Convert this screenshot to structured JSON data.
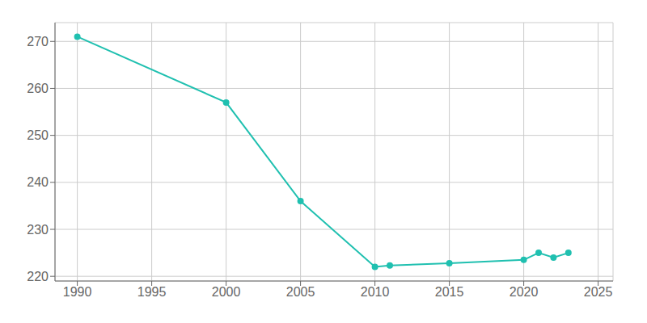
{
  "chart_data": {
    "type": "line",
    "x": [
      1990,
      2000,
      2005,
      2010,
      2011,
      2015,
      2020,
      2021,
      2022,
      2023
    ],
    "values": [
      271,
      257,
      236,
      222,
      222.3,
      222.8,
      223.5,
      225,
      224,
      225
    ],
    "color": "#20c0b0",
    "marker": "circle",
    "xlim": [
      1988.5,
      2026
    ],
    "ylim": [
      219,
      274
    ],
    "xticks": [
      1990,
      1995,
      2000,
      2005,
      2010,
      2015,
      2020,
      2025
    ],
    "yticks": [
      220,
      230,
      240,
      250,
      260,
      270
    ],
    "grid": true
  }
}
